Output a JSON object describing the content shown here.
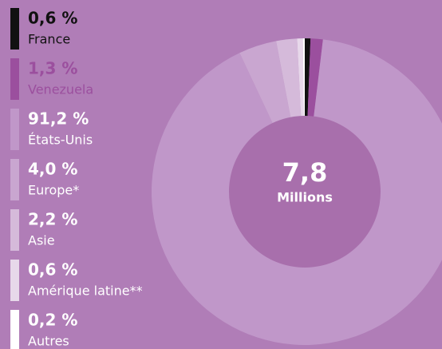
{
  "chart_data": {
    "type": "donut",
    "center_value": "7,8",
    "center_label": "Millions",
    "categories": [
      "France",
      "Venezuela",
      "États-Unis",
      "Europe*",
      "Asie",
      "Amérique latine**",
      "Autres"
    ],
    "values": [
      0.6,
      1.3,
      91.2,
      4.0,
      2.2,
      0.6,
      0.2
    ],
    "value_labels": [
      "0,6 %",
      "1,3 %",
      "91,2 %",
      "4,0 %",
      "2,2 %",
      "0,6 %",
      "0,2 %"
    ],
    "colors": [
      "#111111",
      "#9b4f9e",
      "#c097c9",
      "#c9a6d0",
      "#d5bada",
      "#e7d8ea",
      "#ffffff"
    ],
    "text_colors": [
      "#111111",
      "#9b4f9e",
      "#ffffff",
      "#ffffff",
      "#ffffff",
      "#ffffff",
      "#ffffff"
    ],
    "center_color": "#a86fac"
  }
}
